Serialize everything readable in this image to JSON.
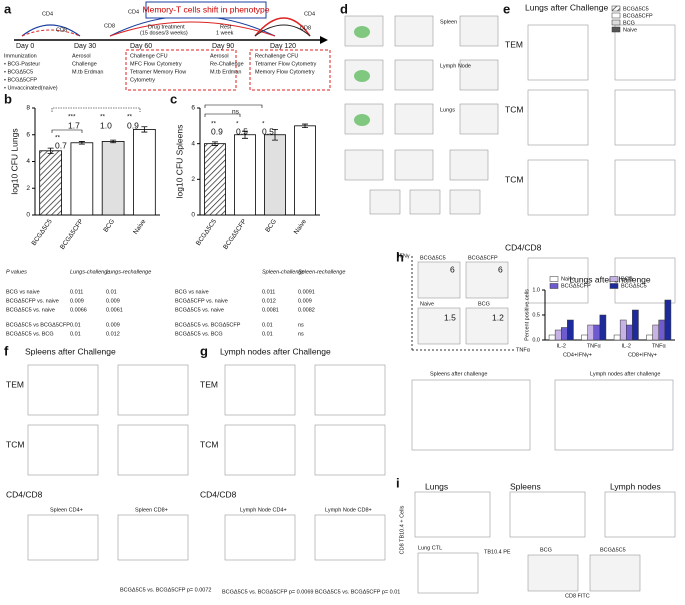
{
  "panel_a": {
    "days": [
      "Day 0",
      "Day 30",
      "Day 60",
      "Day 90",
      "Day 120"
    ],
    "cd": [
      "CD4",
      "CD8",
      "CD4",
      "CD8",
      "CD4",
      "CD8"
    ],
    "memory": "Memory-T cells shift in phenotype",
    "drug": "Drug treatment",
    "drug_doses": "(15 doses/3 weeks)",
    "rest": "Rest",
    "rest_time": "1 week",
    "col0": [
      "Immunization",
      "• BCG-Pasteur",
      "• BCGΔ5C5",
      "• BCGΔ5CFP",
      "• Unvaccinated(naive)"
    ],
    "col1": [
      "Aerosol",
      "Challenge",
      "M.tb Erdman"
    ],
    "col2": [
      "Challenge CFU",
      "MFC Flow Cytometry",
      "Tetramer Memory Flow",
      "Cytometry"
    ],
    "col3": [
      "Aerosol",
      "Re-Challenge",
      "M.tb Erdman"
    ],
    "col4": [
      "Rechallenge CFU",
      "Tetramer Flow Cytometry",
      "Memory Flow Cytometry"
    ]
  },
  "chart_data": [
    {
      "type": "bar",
      "y_label": "log10 CFU Lungs",
      "categories": [
        "BCGΔ5C5",
        "BCGΔ5CFP",
        "BCG",
        "Naive"
      ],
      "values": [
        4.8,
        5.4,
        5.5,
        6.4
      ],
      "errors": [
        0.2,
        0.1,
        0.1,
        0.2
      ],
      "fills": [
        "hatch",
        "#ffffff",
        "#e0e0e0",
        "#ffffff"
      ],
      "ylim": [
        0,
        8
      ],
      "yticks": [
        0,
        2,
        4,
        6,
        8
      ],
      "annotations": [
        "***",
        "1.7",
        "**",
        "1.0",
        "**",
        "0.9",
        "**",
        "0.7"
      ]
    },
    {
      "type": "bar",
      "y_label": "log10 CFU Spleens",
      "categories": [
        "BCGΔ5C5",
        "BCGΔ5CFP",
        "BCG",
        "Naive"
      ],
      "values": [
        4.0,
        4.5,
        4.5,
        5.0
      ],
      "errors": [
        0.1,
        0.2,
        0.3,
        0.1
      ],
      "fills": [
        "hatch",
        "#ffffff",
        "#e0e0e0",
        "#ffffff"
      ],
      "ylim": [
        0,
        6
      ],
      "yticks": [
        0,
        2,
        4,
        6
      ],
      "annotations": [
        "ns",
        "**",
        "0.9",
        "*",
        "0.5",
        "*",
        "0.5"
      ]
    },
    {
      "type": "grouped_bar",
      "title": "Lungs after challenge",
      "y_label": "Percent positive cells",
      "categories": [
        "IL-2",
        "TNFα",
        "IL-2",
        "TNFα"
      ],
      "groups": [
        "CD4+IFNγ+",
        "CD8+IFNγ+"
      ],
      "ylim": [
        0,
        1
      ],
      "yticks": [
        {
          "value": 0,
          "label": "0.0"
        },
        {
          "value": 0.5,
          "label": "0.5"
        },
        {
          "value": 1,
          "label": "1.0"
        }
      ],
      "series": [
        {
          "name": "Naive",
          "color": "#ffffff",
          "values": [
            0.1,
            0.1,
            0.1,
            0.1
          ]
        },
        {
          "name": "BCG",
          "color": "#c7b2e6",
          "values": [
            0.2,
            0.3,
            0.4,
            0.3
          ]
        },
        {
          "name": "BCGΔ5CFP",
          "color": "#6f5bd0",
          "values": [
            0.25,
            0.3,
            0.3,
            0.4
          ]
        },
        {
          "name": "BCGΔ5C5",
          "color": "#1c2a9c",
          "values": [
            0.4,
            0.5,
            0.6,
            0.8
          ]
        }
      ]
    }
  ],
  "tables": [
    {
      "header": [
        "P values",
        "Lungs-challenge",
        "Lungs-rechallenge"
      ],
      "rows": [
        [
          "BCG vs naive",
          "0.011",
          "0.01"
        ],
        [
          "BCGΔ5CFP vs. naive",
          "0.009",
          "0.009"
        ],
        [
          "BCGΔ5C5 vs. naive",
          "0.0066",
          "0.0061"
        ],
        [
          "BCGΔ5C5 vs BCGΔ5CFP",
          "0.01",
          "0.009"
        ],
        [
          "BCGΔ5C5 vs. BCG",
          "0.01",
          "0.012"
        ]
      ]
    },
    {
      "header": [
        "Spleen-challenge",
        "Spleen-rechallenge"
      ],
      "rows": [
        [
          "BCG vs naive",
          "0.011",
          "0.0091"
        ],
        [
          "BCGΔ5CFP vs. naive",
          "0.012",
          "0.009"
        ],
        [
          "BCGΔ5C5 vs. naive",
          "0.0081",
          "0.0082"
        ],
        [
          "BCGΔ5C5 vs. BCGΔ5CFP",
          "0.01",
          "ns"
        ],
        [
          "BCGΔ5C5 vs. BCG",
          "0.01",
          "ns"
        ]
      ]
    }
  ],
  "panels": {
    "letters": [
      "a",
      "b",
      "c",
      "d",
      "e",
      "f",
      "g",
      "h",
      "i"
    ],
    "d": [
      "Spleen",
      "Lymph Node",
      "Lungs"
    ],
    "e": {
      "title": "Lungs after Challenge",
      "rows": [
        "TEM",
        "TCM",
        "TCM",
        "CD4/CD8"
      ],
      "legend": [
        "BCGΔ5C5",
        "BCGΔ5CFP",
        "BCG",
        "Naive"
      ]
    },
    "f": {
      "title": "Spleens after Challenge",
      "rows": [
        "TEM",
        "TCM",
        "CD4/CD8"
      ],
      "sub": [
        "Spleen CD4+",
        "Spleen CD8+"
      ],
      "p": "BCGΔ5C5 vs. BCGΔ5CFP p= 0.0072"
    },
    "g": {
      "title": "Lymph nodes after Challenge",
      "rows": [
        "TEM",
        "TCM",
        "CD4/CD8"
      ],
      "sub": [
        "Lymph Node CD4+",
        "Lymph Node CD8+"
      ],
      "p": [
        "BCGΔ5C5 vs. BCGΔ5CFP p= 0.0069",
        "BCGΔ5C5 vs. BCGΔ5CFP p= 0.01"
      ]
    },
    "h": {
      "axes": [
        "IFNγ",
        "TNFα"
      ],
      "plots": [
        "BCGΔ5C5",
        "BCGΔ5CFP",
        "Naive",
        "BCG"
      ],
      "nums": [
        "6",
        "6",
        "1.5",
        "1.2"
      ],
      "sub": [
        "Spleens after challenge",
        "Lymph nodes after challenge"
      ]
    },
    "i": {
      "ylabel": "CD8 TB10.4 + Cells",
      "titles": [
        "Lungs",
        "Spleens",
        "Lymph nodes",
        "Lung CTL"
      ],
      "plots": [
        "BCG",
        "BCGΔ5C5"
      ],
      "axes": [
        "TB10.4 PE",
        "CD8 FITC"
      ]
    }
  }
}
